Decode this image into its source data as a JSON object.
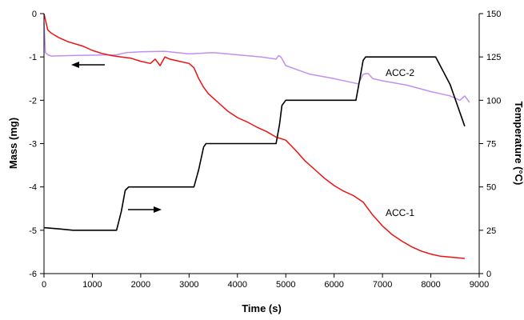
{
  "chart_data": {
    "type": "line",
    "title": "",
    "xlabel": "Time (s)",
    "ylabel": "Mass (mg)",
    "y2label": "Temperature (°C)",
    "xlim": [
      0,
      9000
    ],
    "ylim": [
      -6,
      0
    ],
    "y2lim": [
      0,
      150
    ],
    "xticks": [
      0,
      1000,
      2000,
      3000,
      4000,
      5000,
      6000,
      7000,
      8000,
      9000
    ],
    "yticks": [
      0,
      -1,
      -2,
      -3,
      -4,
      -5,
      -6
    ],
    "y2ticks": [
      0,
      25,
      50,
      75,
      100,
      125,
      150
    ],
    "grid": false,
    "legend": "none",
    "colors": {
      "acc1_mass": "#ee1111",
      "acc2_mass": "#c090f0",
      "temperature": "#000000"
    },
    "series": [
      {
        "axis": "left",
        "x": [
          0,
          30,
          80,
          150,
          300,
          500,
          800,
          1000,
          1200,
          1400,
          1600,
          1800,
          2000,
          2200,
          2300,
          2400,
          2500,
          2600,
          2800,
          3000,
          3100,
          3200,
          3300,
          3400,
          3600,
          3800,
          4000,
          4200,
          4400,
          4600,
          4800,
          5000,
          5200,
          5400,
          5600,
          5800,
          6000,
          6200,
          6400,
          6600,
          6800,
          7000,
          7200,
          7400,
          7600,
          7800,
          8000,
          8200,
          8400,
          8600,
          8700
        ],
        "y": [
          0,
          -0.15,
          -0.38,
          -0.45,
          -0.55,
          -0.65,
          -0.75,
          -0.85,
          -0.92,
          -0.97,
          -1.0,
          -1.03,
          -1.1,
          -1.15,
          -1.05,
          -1.2,
          -1.0,
          -1.05,
          -1.1,
          -1.15,
          -1.25,
          -1.5,
          -1.7,
          -1.85,
          -2.05,
          -2.25,
          -2.4,
          -2.5,
          -2.62,
          -2.72,
          -2.85,
          -2.92,
          -3.15,
          -3.4,
          -3.6,
          -3.8,
          -3.97,
          -4.1,
          -4.2,
          -4.35,
          -4.65,
          -4.9,
          -5.1,
          -5.25,
          -5.38,
          -5.48,
          -5.55,
          -5.6,
          -5.62,
          -5.64,
          -5.65
        ]
      },
      {
        "axis": "left",
        "x": [
          0,
          30,
          80,
          150,
          500,
          1000,
          1500,
          1700,
          2000,
          2500,
          3000,
          3500,
          4000,
          4500,
          4800,
          4850,
          4900,
          4950,
          5000,
          5500,
          6000,
          6500,
          6600,
          6700,
          6800,
          7000,
          7500,
          8000,
          8200,
          8400,
          8600,
          8700,
          8800
        ],
        "y": [
          -0.2,
          -0.9,
          -0.95,
          -0.98,
          -0.97,
          -0.96,
          -0.95,
          -0.9,
          -0.88,
          -0.87,
          -0.93,
          -0.9,
          -0.95,
          -1.0,
          -1.05,
          -0.97,
          -1.0,
          -1.1,
          -1.2,
          -1.4,
          -1.5,
          -1.62,
          -1.4,
          -1.38,
          -1.5,
          -1.55,
          -1.65,
          -1.8,
          -1.85,
          -1.9,
          -2.0,
          -1.9,
          -2.05
        ]
      },
      {
        "axis": "right",
        "x": [
          0,
          300,
          600,
          1000,
          1500,
          1600,
          1680,
          1750,
          2000,
          2500,
          3100,
          3200,
          3300,
          3350,
          3500,
          4000,
          4500,
          4800,
          4870,
          4920,
          5000,
          5500,
          6000,
          6450,
          6530,
          6600,
          6650,
          7000,
          7500,
          8000,
          8100,
          8400,
          8700
        ],
        "y": [
          26.5,
          25.8,
          25,
          25,
          25,
          36,
          48,
          50,
          50,
          50,
          50,
          60,
          73,
          75,
          75,
          75,
          75,
          75,
          86,
          97,
          100,
          100,
          100,
          100,
          112,
          123,
          125,
          125,
          125,
          125,
          125,
          109,
          85
        ]
      }
    ],
    "annotations": [
      "ACC-2",
      "ACC-1"
    ]
  }
}
